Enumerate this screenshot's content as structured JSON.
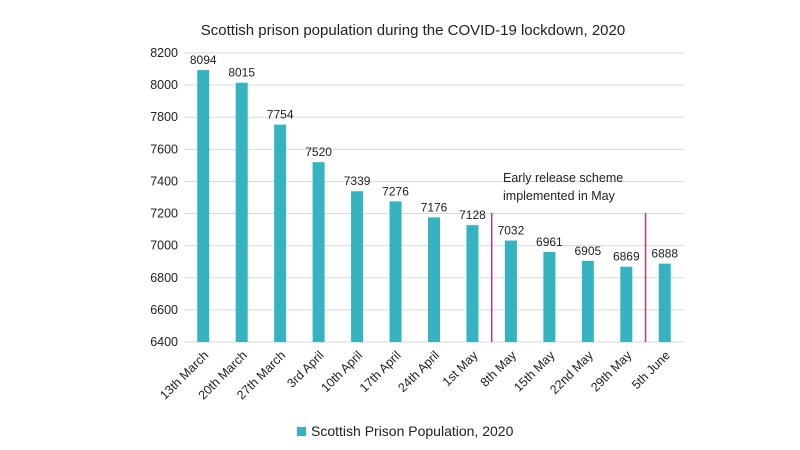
{
  "chart_data": {
    "type": "bar",
    "title": "Scottish prison population during the COVID-19 lockdown, 2020",
    "xlabel": "",
    "ylabel": "",
    "categories": [
      "13th March",
      "20th March",
      "27th March",
      "3rd April",
      "10th April",
      "17th April",
      "24th April",
      "1st May",
      "8th May",
      "15th May",
      "22nd May",
      "29th May",
      "5th June"
    ],
    "series": [
      {
        "name": "Scottish Prison Population, 2020",
        "values": [
          8094,
          8015,
          7754,
          7520,
          7339,
          7276,
          7176,
          7128,
          7032,
          6961,
          6905,
          6869,
          6888
        ]
      }
    ],
    "ylim": [
      6400,
      8200
    ],
    "yticks": [
      6400,
      6600,
      6800,
      7000,
      7200,
      7400,
      7600,
      7800,
      8000,
      8200
    ],
    "grid": true,
    "legend_position": "bottom",
    "annotation": {
      "lines": [
        "Early release scheme",
        "implemented in May"
      ]
    },
    "colors": {
      "bar": "#36B3C1",
      "marker_line": "#B03A8A",
      "grid": "#D9D9D9"
    }
  }
}
